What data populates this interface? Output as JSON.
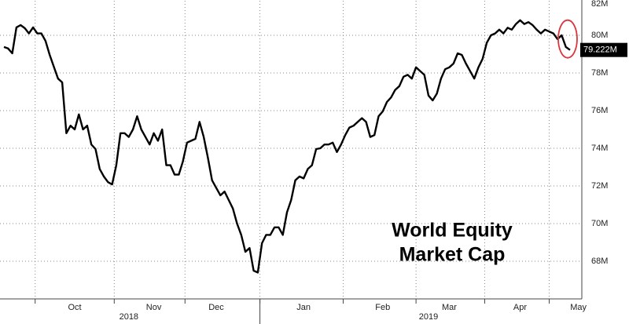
{
  "chart_data": {
    "type": "line",
    "title_lines": [
      "World Equity",
      "Market Cap"
    ],
    "categories": [
      null,
      null,
      null,
      null,
      null,
      null,
      null,
      null,
      null,
      null,
      null,
      null,
      null,
      null,
      null,
      null,
      null,
      "Oct",
      null,
      null,
      null,
      null,
      null,
      null,
      null,
      null,
      null,
      null,
      null,
      null,
      null,
      null,
      null,
      null,
      null,
      null,
      "Nov",
      null,
      null,
      null,
      null,
      null,
      null,
      null,
      null,
      null,
      null,
      null,
      null,
      null,
      null,
      "Dec",
      null,
      null,
      null,
      null,
      null,
      null,
      null,
      null,
      null,
      null,
      null,
      null,
      null,
      null,
      null,
      null,
      null,
      null,
      null,
      null,
      "Jan",
      null,
      null,
      null,
      null,
      null,
      null,
      null,
      null,
      null,
      null,
      null,
      null,
      null,
      null,
      null,
      null,
      null,
      null,
      "Feb",
      null,
      null,
      null,
      null,
      null,
      null,
      null,
      null,
      null,
      null,
      null,
      null,
      null,
      null,
      null,
      "Mar",
      null,
      null,
      null,
      null,
      null,
      null,
      null,
      null,
      null,
      null,
      null,
      null,
      null,
      null,
      null,
      null,
      "Apr",
      null,
      null,
      null,
      null,
      null,
      null,
      null,
      null,
      null,
      null,
      null,
      null,
      null,
      "May"
    ],
    "year_categories": [
      null,
      null,
      null,
      null,
      null,
      null,
      null,
      null,
      null,
      null,
      null,
      null,
      null,
      null,
      null,
      null,
      null,
      null,
      null,
      null,
      null,
      null,
      null,
      null,
      null,
      null,
      null,
      null,
      null,
      null,
      "2018",
      null,
      null,
      null,
      null,
      null,
      null,
      null,
      null,
      null,
      null,
      null,
      null,
      null,
      null,
      null,
      null,
      null,
      null,
      null,
      null,
      null,
      null,
      null,
      null,
      null,
      null,
      null,
      null,
      null,
      null,
      null,
      null,
      null,
      null,
      null,
      null,
      null,
      null,
      null,
      null,
      null,
      null,
      null,
      null,
      null,
      null,
      null,
      null,
      null,
      null,
      null,
      null,
      null,
      null,
      null,
      null,
      null,
      null,
      null,
      null,
      null,
      null,
      null,
      null,
      null,
      null,
      null,
      null,
      null,
      null,
      null,
      "2019",
      null,
      null,
      null,
      null,
      null,
      null,
      null,
      null,
      null,
      null,
      null,
      null,
      null,
      null,
      null,
      null,
      null,
      null,
      null,
      null,
      null,
      null,
      null,
      null,
      null,
      null,
      null,
      null,
      null,
      null,
      null,
      null,
      null,
      null,
      null,
      null
    ],
    "series": [
      {
        "color": "#000000",
        "last_value_label": "79.222M",
        "values": [
          79.38,
          79.3,
          79.04,
          80.42,
          80.54,
          80.38,
          80.1,
          80.42,
          80.1,
          80.1,
          79.7,
          78.96,
          78.33,
          77.7,
          77.5,
          74.8,
          75.2,
          75.0,
          75.8,
          75.0,
          75.2,
          74.2,
          73.96,
          72.9,
          72.5,
          72.2,
          72.08,
          73.1,
          74.8,
          74.8,
          74.6,
          75.0,
          75.7,
          75.0,
          74.6,
          74.2,
          74.8,
          74.4,
          75.0,
          73.1,
          73.1,
          72.6,
          72.6,
          73.3,
          74.3,
          74.4,
          74.5,
          75.4,
          74.6,
          73.5,
          72.3,
          71.9,
          71.5,
          71.7,
          71.25,
          70.8,
          70.0,
          69.4,
          68.5,
          68.7,
          67.5,
          67.4,
          68.96,
          69.4,
          69.4,
          69.8,
          69.8,
          69.4,
          70.6,
          71.25,
          72.3,
          72.5,
          72.4,
          72.9,
          73.1,
          73.96,
          74.0,
          74.2,
          74.2,
          74.3,
          73.8,
          74.2,
          74.7,
          75.1,
          75.2,
          75.4,
          75.6,
          75.4,
          74.6,
          74.7,
          75.7,
          75.96,
          76.46,
          76.7,
          77.1,
          77.3,
          77.8,
          77.9,
          77.7,
          78.3,
          78.1,
          77.9,
          76.8,
          76.54,
          76.9,
          77.7,
          78.2,
          78.3,
          78.5,
          79.04,
          78.96,
          78.5,
          78.1,
          77.7,
          78.3,
          78.75,
          79.6,
          80.0,
          80.1,
          80.3,
          80.1,
          80.4,
          80.3,
          80.6,
          80.8,
          80.6,
          80.7,
          80.54,
          80.3,
          80.1,
          80.3,
          80.2,
          80.1,
          79.8,
          80.0,
          79.38,
          79.222,
          null,
          null
        ]
      }
    ],
    "ylim": [
      66,
      82
    ],
    "yticks": [
      {
        "value": 68,
        "label": "68M"
      },
      {
        "value": 70,
        "label": "70M"
      },
      {
        "value": 72,
        "label": "72M"
      },
      {
        "value": 74,
        "label": "74M"
      },
      {
        "value": 76,
        "label": "76M"
      },
      {
        "value": 78,
        "label": "78M"
      },
      {
        "value": 80,
        "label": "80M"
      },
      {
        "value": 82,
        "label": "82M"
      }
    ],
    "grid": true
  }
}
